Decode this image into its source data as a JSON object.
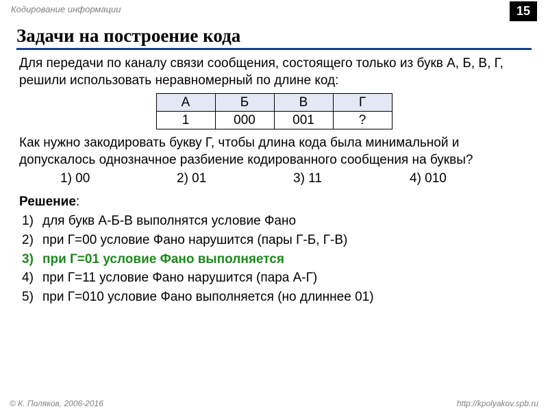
{
  "header": {
    "topic": "Кодирование информации",
    "page_number": "15"
  },
  "title": "Задачи на построение кода",
  "intro": "Для передачи по каналу связи сообщения, состоящего только из букв А, Б, В, Г, решили использовать неравномерный по длине код:",
  "code_table": {
    "headers": [
      "А",
      "Б",
      "В",
      "Г"
    ],
    "values": [
      "1",
      "000",
      "001",
      "?"
    ],
    "header_bg": "#e4e8f4",
    "border_color": "#000000"
  },
  "question": "Как нужно закодировать букву Г, чтобы длина кода была минимальной и допускалось однозначное разбиение кодированного сообщения на буквы?",
  "options": [
    "1) 00",
    "2) 01",
    "3) 11",
    "4) 010"
  ],
  "solution": {
    "label": "Решение",
    "items": [
      {
        "n": "1)",
        "text": "для букв А-Б-В выполнятся условие Фано",
        "hl": false
      },
      {
        "n": "2)",
        "text": "при Г=00 условие Фано нарушится (пары Г-Б,  Г-В)",
        "hl": false
      },
      {
        "n": "3)",
        "text": "при Г=01 условие Фано выполняется",
        "hl": true
      },
      {
        "n": "4)",
        "text": "при Г=11 условие Фано нарушится (пара А-Г)",
        "hl": false
      },
      {
        "n": "5)",
        "text": "при Г=010 условие Фано выполняется (но длиннее 01)",
        "hl": false
      }
    ],
    "highlight_color": "#1b8a1b"
  },
  "footer": {
    "left": "© К. Поляков, 2006-2016",
    "right": "http://kpolyakov.spb.ru"
  },
  "colors": {
    "title_underline": "#1c3e8c",
    "pagenum_bg": "#000000",
    "pagenum_fg": "#ffffff",
    "muted_text": "#808080"
  },
  "typography": {
    "body_font": "Arial",
    "title_font": "Georgia",
    "body_size_pt": 14,
    "title_size_pt": 20
  }
}
